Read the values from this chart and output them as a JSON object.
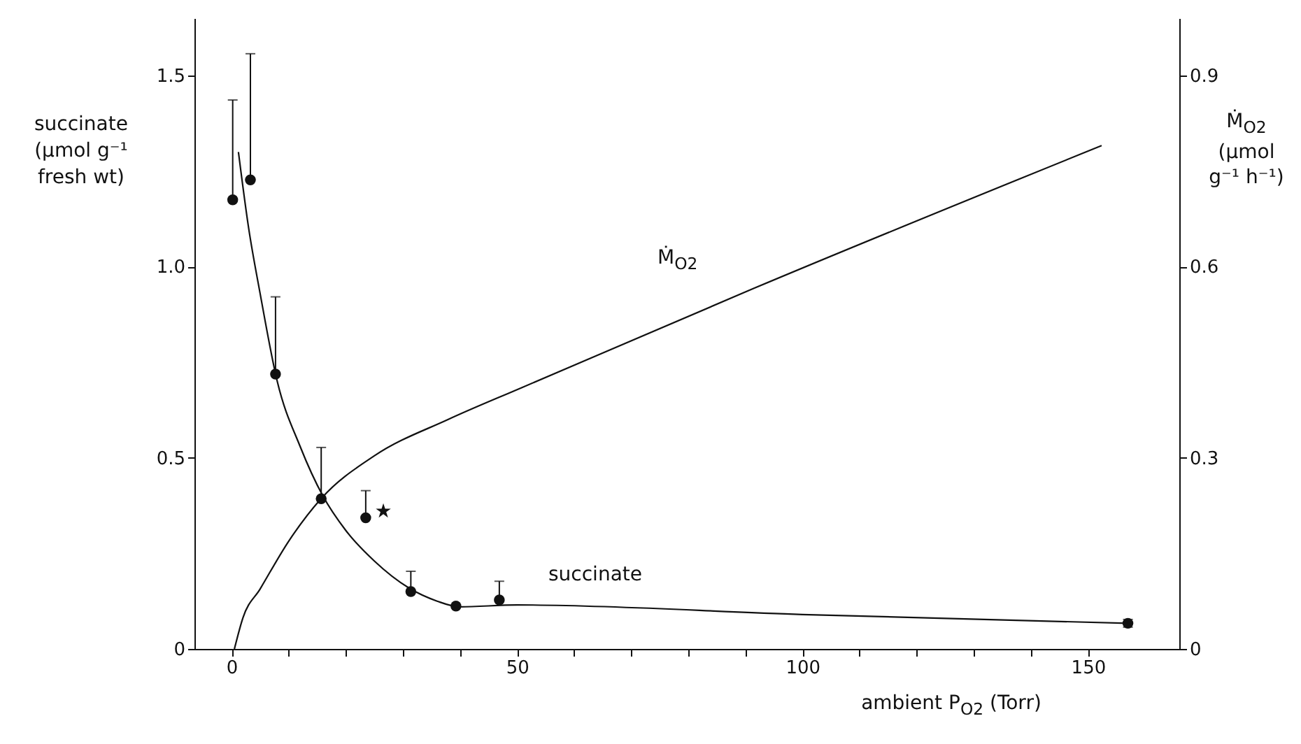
{
  "chart_data": {
    "type": "line",
    "xlabel": "ambient P$_{O2}$ (Torr)",
    "ylabel": "succinate\n(µmol g⁻¹\nfresh wt)",
    "y2label": "Ṁ$_{O2}$\n(µmol\ng⁻¹ h⁻¹)",
    "xlim": [
      -6.5,
      166
    ],
    "xticks": [
      0,
      {
        "value": 10,
        "label": null
      },
      {
        "value": 20,
        "label": null
      },
      {
        "value": 30,
        "label": null
      },
      {
        "value": 40,
        "label": null
      },
      50,
      {
        "value": 60,
        "label": null
      },
      {
        "value": 70,
        "label": null
      },
      {
        "value": 80,
        "label": null
      },
      {
        "value": 90,
        "label": null
      },
      100,
      {
        "value": 110,
        "label": null
      },
      {
        "value": 120,
        "label": null
      },
      {
        "value": 130,
        "label": null
      },
      {
        "value": 140,
        "label": null
      },
      150
    ],
    "ylim": [
      0,
      1.65
    ],
    "yticks": [
      0,
      {
        "value": 0.5,
        "label": "0.5"
      },
      {
        "value": 1,
        "label": "1.0"
      },
      {
        "value": 1.5,
        "label": "1.5"
      }
    ],
    "y2lim": [
      0,
      0.99
    ],
    "y2ticks": [
      0,
      0.3,
      0.6,
      0.9
    ],
    "grid": false,
    "line_style": "solid",
    "series": [
      {
        "type": "scatter",
        "marker": "circle",
        "color": "#111111",
        "x": [
          0.2,
          3.3,
          7.7,
          15.7,
          23.5,
          31.4,
          39.3,
          46.9,
          157
        ],
        "values": [
          1.175,
          1.227,
          0.719,
          0.393,
          0.343,
          0.15,
          0.112,
          0.128,
          0.067
        ],
        "errors": [
          [
            1.175,
            1.436
          ],
          [
            1.227,
            1.557
          ],
          [
            0.719,
            0.921
          ],
          [
            0.393,
            0.527
          ],
          [
            0.343,
            0.414
          ],
          [
            0.15,
            0.203
          ],
          null,
          [
            0.128,
            0.177
          ],
          [
            0.057,
            0.077
          ]
        ]
      },
      {
        "name": "succinate",
        "color": "#111111",
        "x": [
          1.2,
          3,
          5,
          8,
          12,
          16,
          20,
          25,
          31,
          36,
          40,
          50,
          100,
          157
        ],
        "values": [
          1.3,
          1.1,
          0.93,
          0.7,
          0.53,
          0.4,
          0.31,
          0.23,
          0.16,
          0.125,
          0.11,
          0.115,
          0.09,
          0.067
        ]
      },
      {
        "name": "Ṁ$_{O2}$",
        "color": "#111111",
        "axis": "y2",
        "x": [
          0.5,
          2,
          5,
          10,
          15.7,
          25,
          37.9,
          50.8,
          91.5,
          152.4
        ],
        "values": [
          0,
          0.049,
          0.094,
          0.169,
          0.236,
          0.303,
          0.36,
          0.41,
          0.566,
          0.79
        ]
      }
    ],
    "annotations": [
      "★"
    ]
  }
}
